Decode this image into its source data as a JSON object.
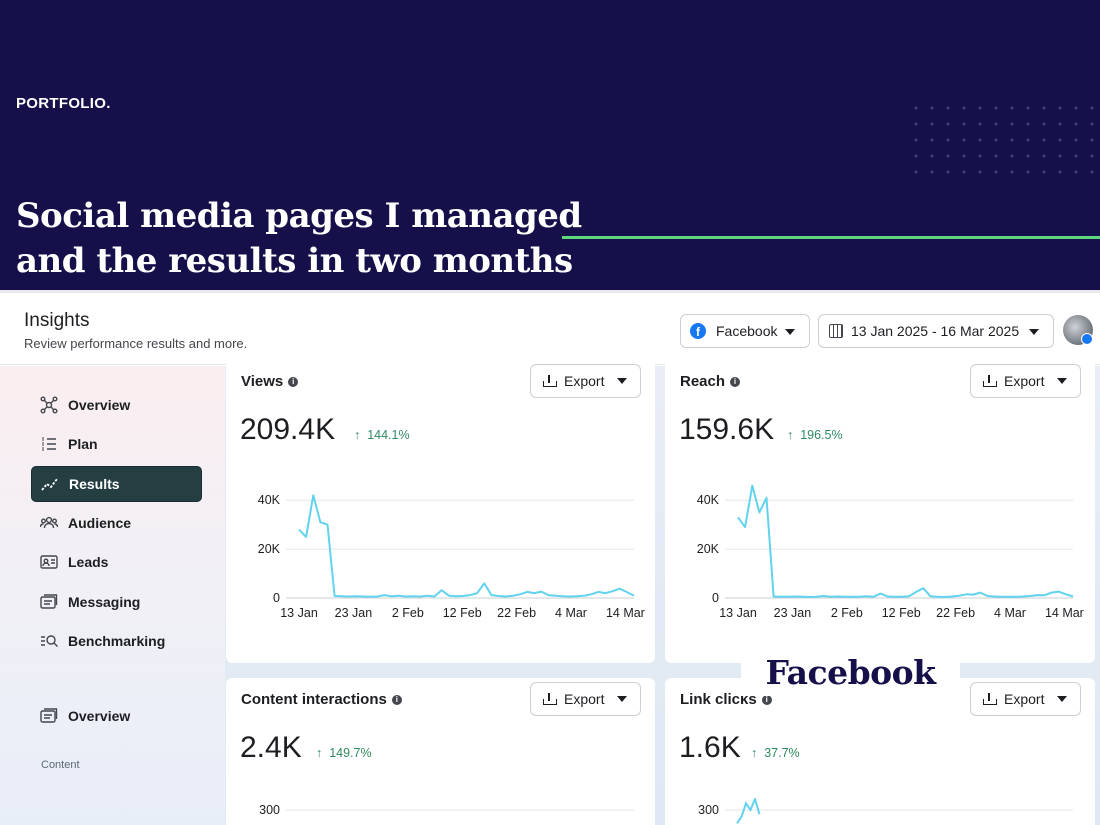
{
  "banner": {
    "brand": "PORTFOLIO.",
    "headline_line1": "Social media pages I managed",
    "headline_line2": "and the results in two months"
  },
  "topbar": {
    "title": "Insights",
    "subtitle": "Review performance results and more.",
    "platform_select": "Facebook",
    "date_range": "13 Jan 2025 - 16 Mar 2025"
  },
  "sidebar": {
    "items": [
      {
        "label": "Overview",
        "icon": "network-icon"
      },
      {
        "label": "Plan",
        "icon": "list-icon"
      },
      {
        "label": "Results",
        "icon": "trend-icon",
        "active": true
      },
      {
        "label": "Audience",
        "icon": "people-icon"
      },
      {
        "label": "Leads",
        "icon": "id-card-icon"
      },
      {
        "label": "Messaging",
        "icon": "message-icon"
      },
      {
        "label": "Benchmarking",
        "icon": "benchmark-icon"
      }
    ],
    "section_label": "Content",
    "content_items": [
      {
        "label": "Overview",
        "icon": "content-icon"
      }
    ]
  },
  "export_label": "Export",
  "cards": [
    {
      "title": "Views",
      "value": "209.4K",
      "delta": "144.1%"
    },
    {
      "title": "Reach",
      "value": "159.6K",
      "delta": "196.5%"
    },
    {
      "title": "Content interactions",
      "value": "2.4K",
      "delta": "149.7%"
    },
    {
      "title": "Link clicks",
      "value": "1.6K",
      "delta": "37.7%"
    }
  ],
  "overlay_label": "Facebook",
  "colors": {
    "banner_bg": "#15104a",
    "accent_line": "#5fd67b",
    "series": "#62d3ee",
    "active_nav": "#253e42",
    "positive": "#2e8a5f"
  },
  "chart_data": [
    {
      "type": "line",
      "title": "Views",
      "x_ticks": [
        "13 Jan",
        "23 Jan",
        "2 Feb",
        "12 Feb",
        "22 Feb",
        "4 Mar",
        "14 Mar"
      ],
      "y_ticks": [
        "0",
        "20K",
        "40K"
      ],
      "ylim": [
        0,
        45000
      ],
      "values": [
        28000,
        25000,
        42000,
        31000,
        30000,
        800,
        700,
        600,
        700,
        600,
        500,
        600,
        1200,
        700,
        900,
        600,
        700,
        600,
        900,
        600,
        3200,
        1000,
        700,
        800,
        1200,
        2000,
        6000,
        1200,
        800,
        600,
        900,
        1500,
        2500,
        2000,
        2600,
        1200,
        900,
        700,
        600,
        700,
        900,
        1500,
        2500,
        2000,
        2800,
        3800,
        2400,
        1000
      ]
    },
    {
      "type": "line",
      "title": "Reach",
      "x_ticks": [
        "13 Jan",
        "23 Jan",
        "2 Feb",
        "12 Feb",
        "22 Feb",
        "4 Mar",
        "14 Mar"
      ],
      "y_ticks": [
        "0",
        "20K",
        "40K"
      ],
      "ylim": [
        0,
        45000
      ],
      "values": [
        33000,
        29000,
        46000,
        35000,
        41000,
        600,
        500,
        500,
        600,
        500,
        400,
        500,
        800,
        500,
        600,
        500,
        500,
        500,
        700,
        500,
        1800,
        600,
        500,
        500,
        700,
        2500,
        4000,
        700,
        500,
        400,
        600,
        900,
        1500,
        1400,
        2200,
        800,
        600,
        500,
        500,
        500,
        600,
        800,
        1200,
        1100,
        2200,
        2600,
        1500,
        600
      ]
    },
    {
      "type": "line",
      "title": "Content interactions",
      "y_ticks": [
        "300"
      ],
      "values": []
    },
    {
      "type": "line",
      "title": "Link clicks",
      "y_ticks": [
        "300"
      ],
      "values": [
        270,
        285,
        315,
        300,
        325,
        290
      ]
    }
  ]
}
